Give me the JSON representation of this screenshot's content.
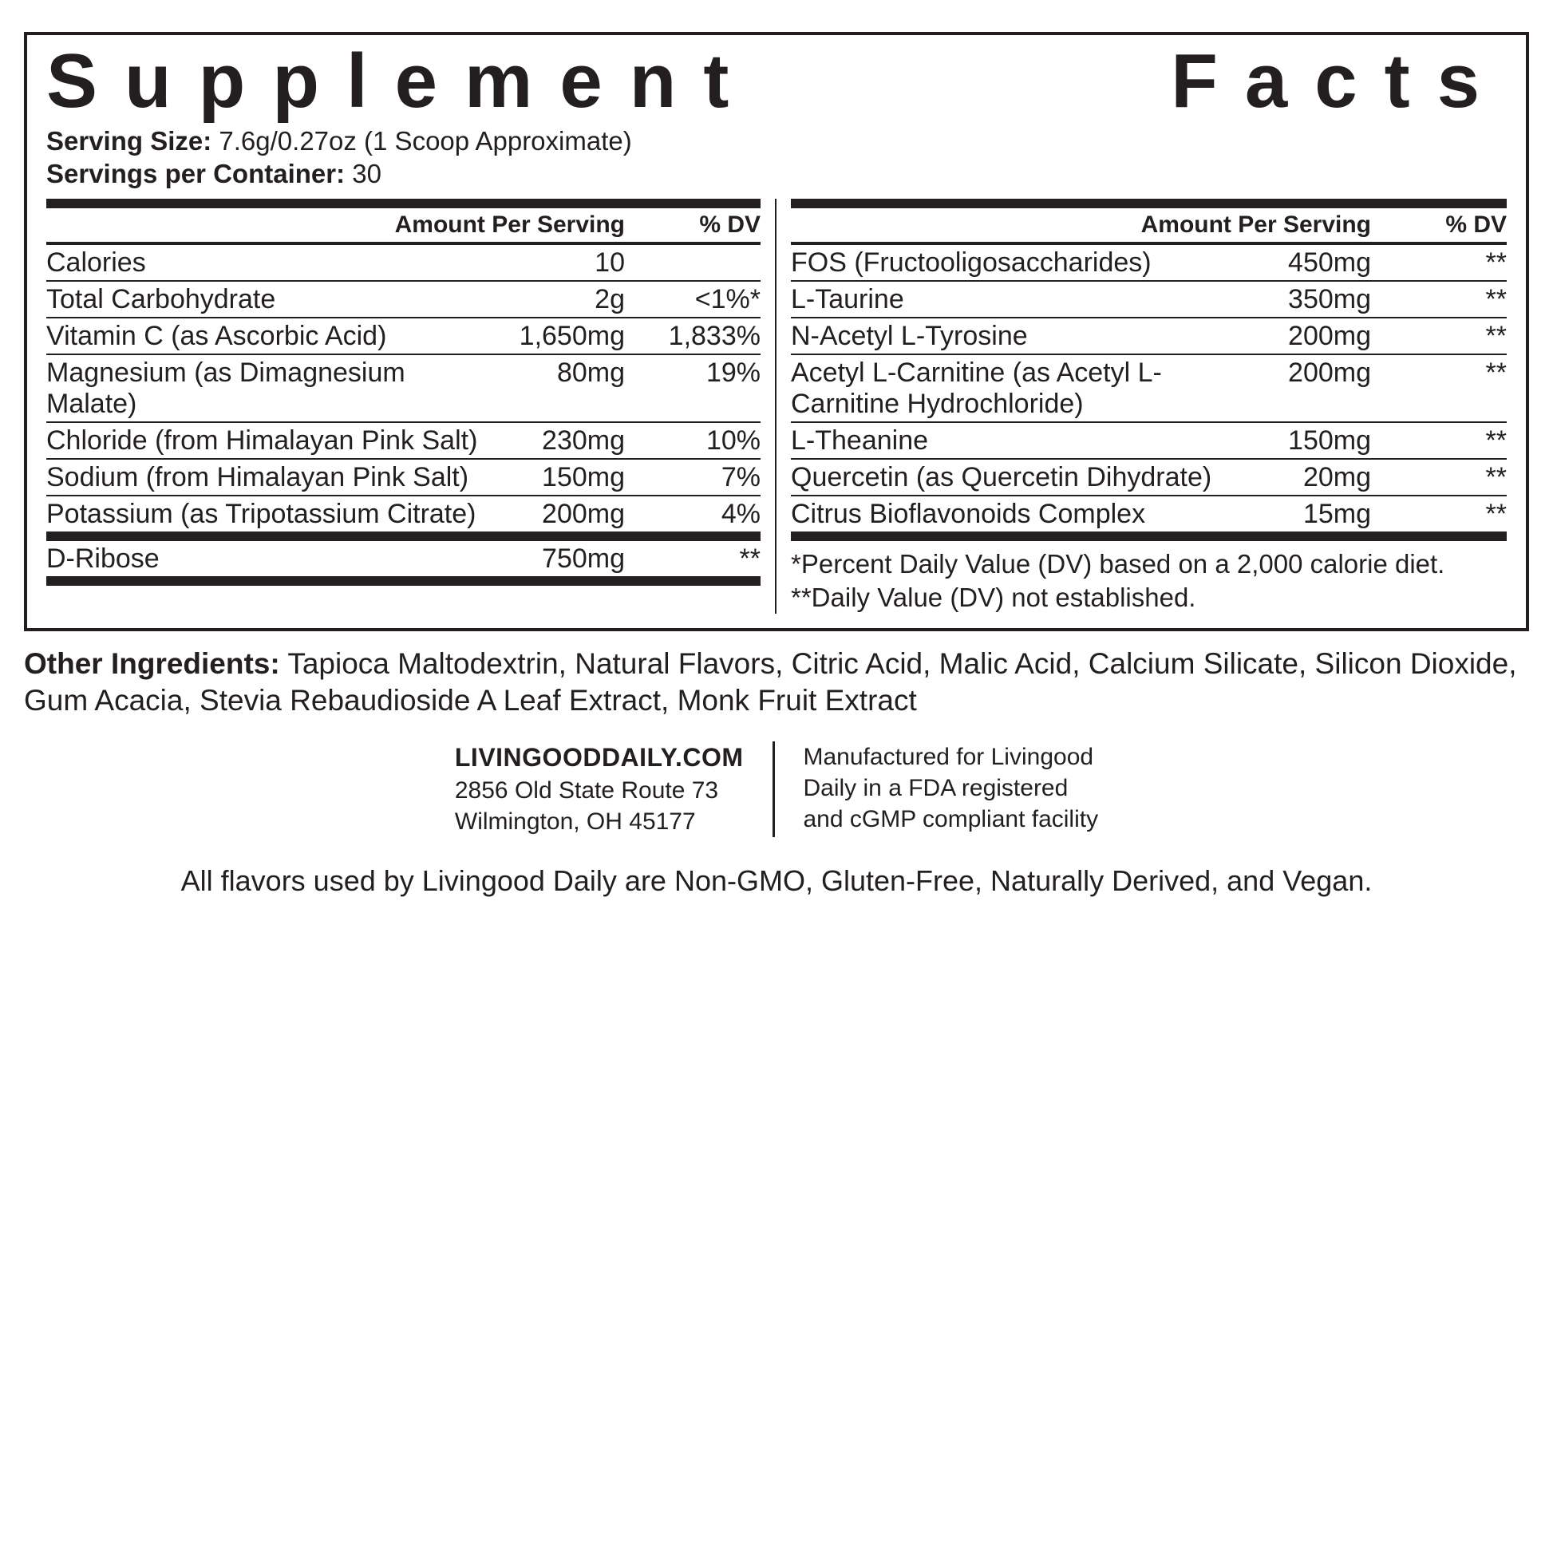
{
  "title": "Supplement Facts",
  "serving_size_label": "Serving Size:",
  "serving_size_value": "7.6g/0.27oz (1 Scoop Approximate)",
  "servings_per_label": "Servings per Container:",
  "servings_per_value": "30",
  "headers": {
    "amount": "Amount Per Serving",
    "dv": "% DV"
  },
  "left_rows": [
    {
      "name": "Calories",
      "amount": "10",
      "dv": ""
    },
    {
      "name": "Total Carbohydrate",
      "amount": "2g",
      "dv": "<1%*"
    },
    {
      "name": "Vitamin C (as Ascorbic Acid)",
      "amount": "1,650mg",
      "dv": "1,833%"
    },
    {
      "name": "Magnesium (as Dimagnesium Malate)",
      "amount": "80mg",
      "dv": "19%"
    },
    {
      "name": "Chloride (from Himalayan Pink Salt)",
      "amount": "230mg",
      "dv": "10%"
    },
    {
      "name": "Sodium (from Himalayan Pink Salt)",
      "amount": "150mg",
      "dv": "7%"
    },
    {
      "name": "Potassium (as Tripotassium Citrate)",
      "amount": "200mg",
      "dv": "4%"
    }
  ],
  "left_rows_after": [
    {
      "name": "D-Ribose",
      "amount": "750mg",
      "dv": "**"
    }
  ],
  "right_rows": [
    {
      "name": "FOS (Fructooligosaccharides)",
      "amount": "450mg",
      "dv": "**"
    },
    {
      "name": "L-Taurine",
      "amount": "350mg",
      "dv": "**"
    },
    {
      "name": "N-Acetyl L-Tyrosine",
      "amount": "200mg",
      "dv": "**"
    },
    {
      "name": "Acetyl L-Carnitine (as Acetyl L-Carnitine Hydrochloride)",
      "amount": "200mg",
      "dv": "**"
    },
    {
      "name": "L-Theanine",
      "amount": "150mg",
      "dv": "**"
    },
    {
      "name": "Quercetin (as Quercetin Dihydrate)",
      "amount": "20mg",
      "dv": "**"
    },
    {
      "name": "Citrus Bioflavonoids Complex",
      "amount": "15mg",
      "dv": "**"
    }
  ],
  "footnote1": "*Percent Daily Value (DV) based on a 2,000 calorie diet.",
  "footnote2": "**Daily Value (DV) not established.",
  "other_label": "Other Ingredients:",
  "other_text": "Tapioca Maltodextrin, Natural Flavors, Citric Acid, Malic Acid, Calcium Silicate, Silicon Dioxide, Gum Acacia, Stevia Rebaudioside A Leaf Extract, Monk Fruit Extract",
  "contact": {
    "site": "LIVINGOODDAILY.COM",
    "addr1": "2856 Old State Route 73",
    "addr2": "Wilmington, OH 45177",
    "mfg1": "Manufactured for Livingood",
    "mfg2": "Daily in a FDA registered",
    "mfg3": "and cGMP compliant facility"
  },
  "flavor_note": "All flavors used by Livingood Daily are Non-GMO, Gluten-Free, Naturally Derived, and Vegan."
}
